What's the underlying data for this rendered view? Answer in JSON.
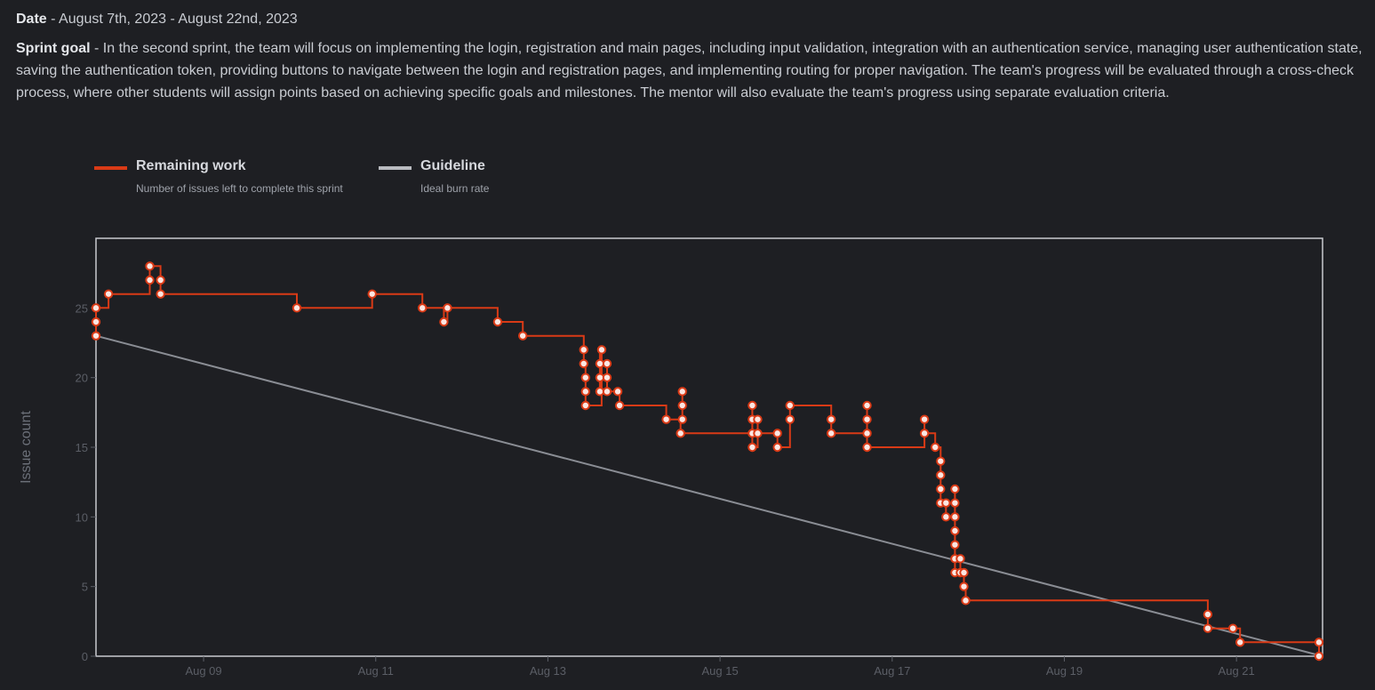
{
  "info": {
    "date_label": "Date",
    "date_value": " - August 7th, 2023 - August 22nd, 2023",
    "goal_label": "Sprint goal",
    "goal_value": " - In the second sprint, the team will focus on implementing the login, registration and main pages, including input validation, integration with an authentication service, managing user authentication state, saving the authentication token, providing buttons to navigate between the login and registration pages, and implementing routing for proper navigation. The team's progress will be evaluated through a cross-check process, where other students will assign points based on achieving specific goals and milestones. The mentor will also evaluate the team's progress using separate evaluation criteria."
  },
  "colors": {
    "remaining": "#d93a16",
    "guideline": "#8a8d94",
    "marker_fill": "#fbe6e2",
    "frame": "#c8cacf",
    "background": "#1e1f23"
  },
  "chart_data": {
    "type": "line",
    "ylabel": "Issue count",
    "xlabel": "",
    "ylim": [
      0,
      30
    ],
    "xlim": [
      "2023-08-07T18:00",
      "2023-08-22T00:00"
    ],
    "yticks": [
      0,
      5,
      10,
      15,
      20,
      25
    ],
    "xticks": [
      "Aug 09",
      "Aug 11",
      "Aug 13",
      "Aug 15",
      "Aug 17",
      "Aug 19",
      "Aug 21"
    ],
    "grid": false,
    "legend": [
      {
        "name": "Remaining work",
        "description": "Number of issues left to complete this sprint"
      },
      {
        "name": "Guideline",
        "description": "Ideal burn rate"
      }
    ],
    "series": [
      {
        "name": "Remaining work",
        "step": true,
        "points": [
          [
            "2023-08-07T18:00",
            23
          ],
          [
            "2023-08-07T18:00",
            24
          ],
          [
            "2023-08-07T18:00",
            25
          ],
          [
            "2023-08-07T21:30",
            26
          ],
          [
            "2023-08-08T09:00",
            27
          ],
          [
            "2023-08-08T09:00",
            28
          ],
          [
            "2023-08-08T12:00",
            27
          ],
          [
            "2023-08-08T12:00",
            26
          ],
          [
            "2023-08-10T02:00",
            25
          ],
          [
            "2023-08-10T23:00",
            26
          ],
          [
            "2023-08-11T13:00",
            25
          ],
          [
            "2023-08-11T19:00",
            24
          ],
          [
            "2023-08-11T20:00",
            25
          ],
          [
            "2023-08-12T10:00",
            24
          ],
          [
            "2023-08-12T17:00",
            23
          ],
          [
            "2023-08-13T10:00",
            22
          ],
          [
            "2023-08-13T10:00",
            21
          ],
          [
            "2023-08-13T10:30",
            20
          ],
          [
            "2023-08-13T10:30",
            19
          ],
          [
            "2023-08-13T10:30",
            18
          ],
          [
            "2023-08-13T15:00",
            22
          ],
          [
            "2023-08-13T14:30",
            21
          ],
          [
            "2023-08-13T14:30",
            20
          ],
          [
            "2023-08-13T14:30",
            19
          ],
          [
            "2023-08-13T16:30",
            21
          ],
          [
            "2023-08-13T16:30",
            20
          ],
          [
            "2023-08-13T16:30",
            19
          ],
          [
            "2023-08-13T19:30",
            19
          ],
          [
            "2023-08-13T20:00",
            18
          ],
          [
            "2023-08-14T09:00",
            17
          ],
          [
            "2023-08-14T13:30",
            19
          ],
          [
            "2023-08-14T13:30",
            18
          ],
          [
            "2023-08-14T13:30",
            17
          ],
          [
            "2023-08-14T13:00",
            16
          ],
          [
            "2023-08-15T09:00",
            18
          ],
          [
            "2023-08-15T09:00",
            17
          ],
          [
            "2023-08-15T09:00",
            16
          ],
          [
            "2023-08-15T09:00",
            15
          ],
          [
            "2023-08-15T10:30",
            17
          ],
          [
            "2023-08-15T10:30",
            16
          ],
          [
            "2023-08-15T16:00",
            16
          ],
          [
            "2023-08-15T16:00",
            15
          ],
          [
            "2023-08-15T19:30",
            17
          ],
          [
            "2023-08-15T19:30",
            18
          ],
          [
            "2023-08-16T07:00",
            17
          ],
          [
            "2023-08-16T07:00",
            16
          ],
          [
            "2023-08-16T17:00",
            18
          ],
          [
            "2023-08-16T17:00",
            17
          ],
          [
            "2023-08-16T17:00",
            16
          ],
          [
            "2023-08-16T17:00",
            15
          ],
          [
            "2023-08-17T09:00",
            17
          ],
          [
            "2023-08-17T09:00",
            16
          ],
          [
            "2023-08-17T12:00",
            15
          ],
          [
            "2023-08-17T13:30",
            14
          ],
          [
            "2023-08-17T13:30",
            13
          ],
          [
            "2023-08-17T13:30",
            12
          ],
          [
            "2023-08-17T13:30",
            11
          ],
          [
            "2023-08-17T15:00",
            11
          ],
          [
            "2023-08-17T15:00",
            10
          ],
          [
            "2023-08-17T17:30",
            12
          ],
          [
            "2023-08-17T17:30",
            11
          ],
          [
            "2023-08-17T17:30",
            10
          ],
          [
            "2023-08-17T17:30",
            9
          ],
          [
            "2023-08-17T17:30",
            8
          ],
          [
            "2023-08-17T17:30",
            7
          ],
          [
            "2023-08-17T17:30",
            6
          ],
          [
            "2023-08-17T19:00",
            7
          ],
          [
            "2023-08-17T19:00",
            6
          ],
          [
            "2023-08-17T20:00",
            6
          ],
          [
            "2023-08-17T20:00",
            5
          ],
          [
            "2023-08-17T20:30",
            4
          ],
          [
            "2023-08-20T16:00",
            3
          ],
          [
            "2023-08-20T16:00",
            2
          ],
          [
            "2023-08-20T23:00",
            2
          ],
          [
            "2023-08-21T01:00",
            1
          ],
          [
            "2023-08-21T23:00",
            1
          ],
          [
            "2023-08-21T23:00",
            0
          ]
        ]
      },
      {
        "name": "Guideline",
        "step": false,
        "points": [
          [
            "2023-08-07T18:00",
            23
          ],
          [
            "2023-08-22T00:00",
            0
          ]
        ]
      }
    ]
  }
}
